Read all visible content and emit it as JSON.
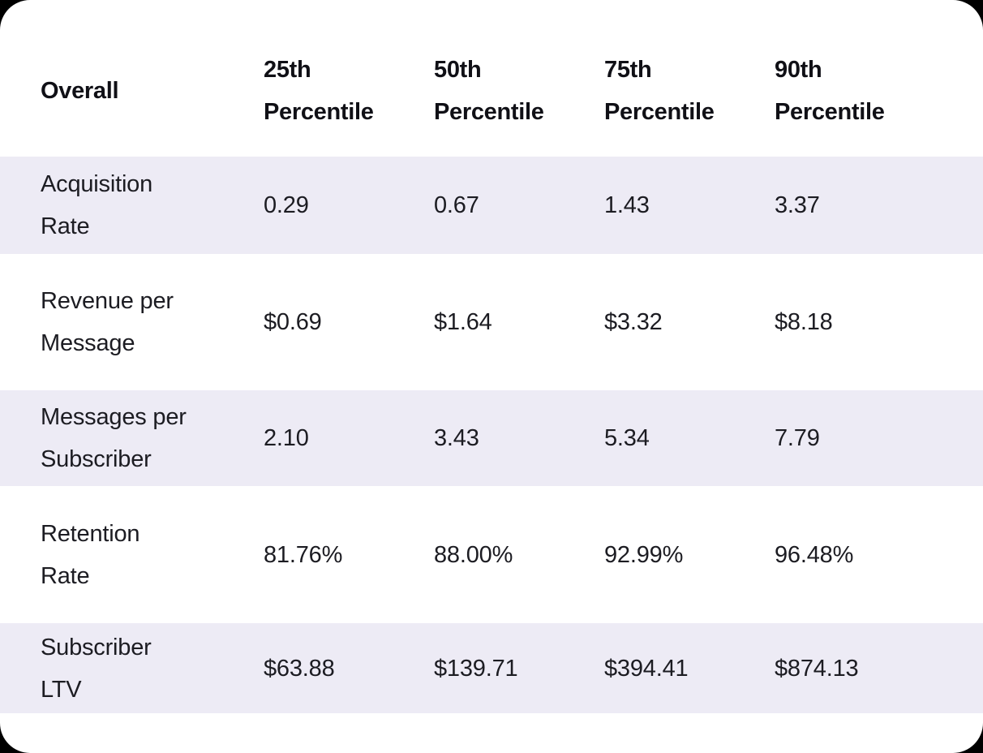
{
  "colors": {
    "page_background": "#000000",
    "card_background": "#ffffff",
    "row_stripe": "#edebf5",
    "header_text": "#101016",
    "body_text": "#1c1c22"
  },
  "table": {
    "header": {
      "metric_col": "Overall",
      "p25": {
        "line1": "25th",
        "line2": "Percentile"
      },
      "p50": {
        "line1": "50th",
        "line2": "Percentile"
      },
      "p75": {
        "line1": "75th",
        "line2": "Percentile"
      },
      "p90": {
        "line1": "90th",
        "line2": "Percentile"
      }
    },
    "rows": [
      {
        "label_line1": "Acquisition",
        "label_line2": "Rate",
        "p25": "0.29",
        "p50": "0.67",
        "p75": "1.43",
        "p90": "3.37"
      },
      {
        "label_line1": "Revenue per",
        "label_line2": "Message",
        "p25": "$0.69",
        "p50": "$1.64",
        "p75": "$3.32",
        "p90": "$8.18"
      },
      {
        "label_line1": "Messages per",
        "label_line2": "Subscriber",
        "p25": "2.10",
        "p50": "3.43",
        "p75": "5.34",
        "p90": "7.79"
      },
      {
        "label_line1": "Retention",
        "label_line2": "Rate",
        "p25": "81.76%",
        "p50": "88.00%",
        "p75": "92.99%",
        "p90": "96.48%"
      },
      {
        "label_line1": "Subscriber",
        "label_line2": "LTV",
        "p25": "$63.88",
        "p50": "$139.71",
        "p75": "$394.41",
        "p90": "$874.13"
      }
    ]
  },
  "chart_data": {
    "type": "table",
    "title": "Overall percentile metrics",
    "columns": [
      "Overall",
      "25th Percentile",
      "50th Percentile",
      "75th Percentile",
      "90th Percentile"
    ],
    "rows": [
      [
        "Acquisition Rate",
        "0.29",
        "0.67",
        "1.43",
        "3.37"
      ],
      [
        "Revenue per Message",
        "$0.69",
        "$1.64",
        "$3.32",
        "$8.18"
      ],
      [
        "Messages per Subscriber",
        "2.10",
        "3.43",
        "5.34",
        "7.79"
      ],
      [
        "Retention Rate",
        "81.76%",
        "88.00%",
        "92.99%",
        "96.48%"
      ],
      [
        "Subscriber LTV",
        "$63.88",
        "$139.71",
        "$394.41",
        "$874.13"
      ]
    ]
  }
}
